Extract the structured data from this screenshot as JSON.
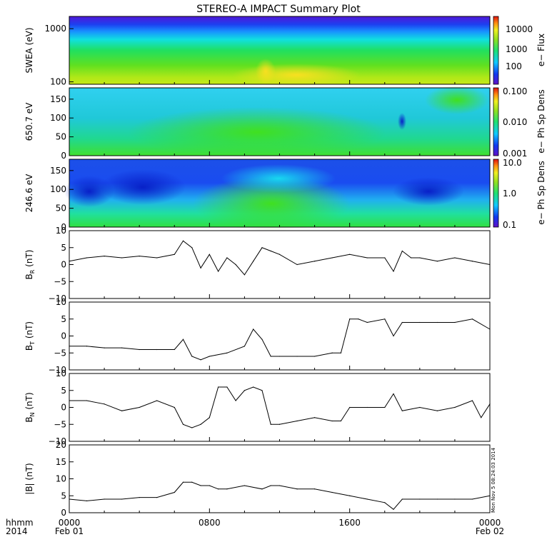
{
  "title": "STEREO-A IMPACT Summary Plot",
  "stamp": "Mon Nov  5 08:24:03 2014",
  "xaxis": {
    "corner_top": "hhmm",
    "corner_bottom": "2014",
    "range_hours": [
      0,
      24
    ],
    "ticks": [
      {
        "h": 0,
        "time": "0000",
        "date": "Feb 01"
      },
      {
        "h": 8,
        "time": "0800",
        "date": ""
      },
      {
        "h": 16,
        "time": "1600",
        "date": ""
      },
      {
        "h": 24,
        "time": "0000",
        "date": "Feb 02"
      }
    ]
  },
  "colors": {
    "line": "#000000"
  },
  "chart_data": [
    {
      "type": "heatmap",
      "ylabel": "SWEA (eV)",
      "yscale": "log",
      "ylim": [
        90,
        1700
      ],
      "yticks": [
        "100",
        "1000"
      ],
      "colorbar_label": "e− Flux",
      "colorbar_ticks": [
        "100",
        "1000",
        "10000"
      ],
      "colorbar_range": [
        10,
        40000
      ]
    },
    {
      "type": "heatmap",
      "ylabel": "650.7 eV",
      "ylim": [
        0,
        180
      ],
      "yticks": [
        "0",
        "50",
        "100",
        "150"
      ],
      "colorbar_label": "e− Ph Sp Dens",
      "colorbar_ticks": [
        "0.001",
        "0.010",
        "0.100"
      ],
      "colorbar_range": [
        0.001,
        0.1
      ]
    },
    {
      "type": "heatmap",
      "ylabel": "246.6 eV",
      "ylim": [
        0,
        180
      ],
      "yticks": [
        "0",
        "50",
        "100",
        "150"
      ],
      "colorbar_label": "e− Ph Sp Dens",
      "colorbar_ticks": [
        "0.1",
        "1.0",
        "10.0"
      ],
      "colorbar_range": [
        0.1,
        10
      ]
    },
    {
      "type": "line",
      "ylabel": "B",
      "ylabel_sub": "R",
      "ylabel_unit": "(nT)",
      "ylim": [
        -10,
        10
      ],
      "yticks": [
        "−10",
        "−5",
        "0",
        "5",
        "10"
      ],
      "x_hours": [
        0,
        1,
        2,
        3,
        4,
        5,
        6,
        6.5,
        7,
        7.5,
        8,
        8.5,
        9,
        9.5,
        10,
        10.5,
        11,
        11.5,
        12,
        13,
        14,
        15,
        16,
        17,
        18,
        18.5,
        19,
        19.5,
        20,
        21,
        22,
        23,
        24
      ],
      "values": [
        1,
        2,
        2.5,
        2,
        2.5,
        2,
        3,
        7,
        5,
        -1,
        3,
        -2,
        2,
        0,
        -3,
        1,
        5,
        4,
        3,
        0,
        1,
        2,
        3,
        2,
        2,
        -2,
        4,
        2,
        2,
        1,
        2,
        1,
        0
      ]
    },
    {
      "type": "line",
      "ylabel": "B",
      "ylabel_sub": "T",
      "ylabel_unit": "(nT)",
      "ylim": [
        -10,
        10
      ],
      "yticks": [
        "−10",
        "−5",
        "0",
        "5",
        "10"
      ],
      "x_hours": [
        0,
        1,
        2,
        3,
        4,
        5,
        6,
        6.5,
        7,
        7.5,
        8,
        9,
        10,
        10.5,
        11,
        11.5,
        12,
        13,
        14,
        15,
        15.5,
        16,
        16.5,
        17,
        18,
        18.5,
        19,
        20,
        21,
        22,
        23,
        24
      ],
      "values": [
        -3,
        -3,
        -3.5,
        -3.5,
        -4,
        -4,
        -4,
        -1,
        -6,
        -7,
        -6,
        -5,
        -3,
        2,
        -1,
        -6,
        -6,
        -6,
        -6,
        -5,
        -5,
        5,
        5,
        4,
        5,
        0,
        4,
        4,
        4,
        4,
        5,
        2
      ]
    },
    {
      "type": "line",
      "ylabel": "B",
      "ylabel_sub": "N",
      "ylabel_unit": "(nT)",
      "ylim": [
        -10,
        10
      ],
      "yticks": [
        "−10",
        "−5",
        "0",
        "5",
        "10"
      ],
      "x_hours": [
        0,
        1,
        2,
        3,
        4,
        5,
        6,
        6.5,
        7,
        7.5,
        8,
        8.5,
        9,
        9.5,
        10,
        10.5,
        11,
        11.5,
        12,
        13,
        14,
        15,
        15.5,
        16,
        17,
        18,
        18.5,
        19,
        20,
        21,
        22,
        23,
        23.5,
        24
      ],
      "values": [
        2,
        2,
        1,
        -1,
        0,
        2,
        0,
        -5,
        -6,
        -5,
        -3,
        6,
        6,
        2,
        5,
        6,
        5,
        -5,
        -5,
        -4,
        -3,
        -4,
        -4,
        0,
        0,
        0,
        4,
        -1,
        0,
        -1,
        0,
        2,
        -3,
        1
      ]
    },
    {
      "type": "line",
      "ylabel": "|B|",
      "ylabel_sub": "",
      "ylabel_unit": "(nT)",
      "ylim": [
        0,
        20
      ],
      "yticks": [
        "0",
        "5",
        "10",
        "15",
        "20"
      ],
      "x_hours": [
        0,
        1,
        2,
        3,
        4,
        5,
        6,
        6.5,
        7,
        7.5,
        8,
        8.5,
        9,
        10,
        11,
        11.5,
        12,
        13,
        14,
        15,
        16,
        17,
        18,
        18.5,
        19,
        20,
        21,
        22,
        23,
        24
      ],
      "values": [
        4,
        3.5,
        4,
        4,
        4.5,
        4.5,
        6,
        9,
        9,
        8,
        8,
        7,
        7,
        8,
        7,
        8,
        8,
        7,
        7,
        6,
        5,
        4,
        3,
        1,
        4,
        4,
        4,
        4,
        4,
        5
      ]
    }
  ]
}
